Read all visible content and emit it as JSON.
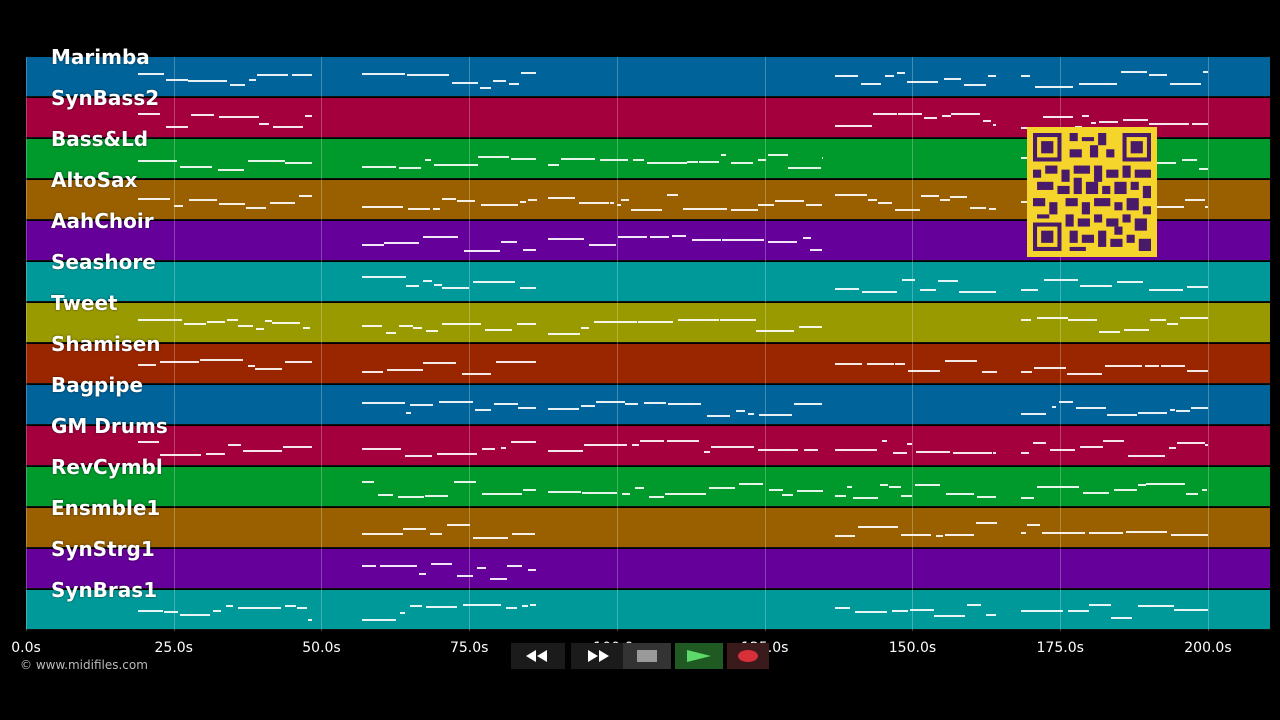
{
  "tracks": [
    {
      "name": "Marimba",
      "color": "#00649a"
    },
    {
      "name": "SynBass2",
      "color": "#a3003d"
    },
    {
      "name": "Bass&Ld",
      "color": "#00992b"
    },
    {
      "name": "AltoSax",
      "color": "#9a6000"
    },
    {
      "name": "AahChoir",
      "color": "#66009a"
    },
    {
      "name": "Seashore",
      "color": "#00999a"
    },
    {
      "name": "Tweet",
      "color": "#999900"
    },
    {
      "name": "Shamisen",
      "color": "#9a2600"
    },
    {
      "name": "Bagpipe",
      "color": "#00649a"
    },
    {
      "name": "GM Drums",
      "color": "#a3003d"
    },
    {
      "name": "RevCymbl",
      "color": "#00992b"
    },
    {
      "name": "Ensmble1",
      "color": "#9a6000"
    },
    {
      "name": "SynStrg1",
      "color": "#66009a"
    },
    {
      "name": "SynBras1",
      "color": "#00999a"
    }
  ],
  "timeline": {
    "ticks": [
      "0.0s",
      "25.0s",
      "50.0s",
      "75.0s",
      "100.0s",
      "125.0s",
      "150.0s",
      "175.0s",
      "200.0s"
    ],
    "tick_seconds": [
      0,
      25,
      50,
      75,
      100,
      125,
      150,
      175,
      200
    ],
    "max_seconds": 210.5
  },
  "copyright": "© www.midifiles.com",
  "qr_code": {
    "icon": "qr-code-icon",
    "color": "#f5d52c"
  },
  "transport": {
    "rewind": "rewind-icon",
    "fast_forward": "fast-forward-icon",
    "stop": "stop-icon",
    "play": "play-icon",
    "record": "record-icon"
  }
}
